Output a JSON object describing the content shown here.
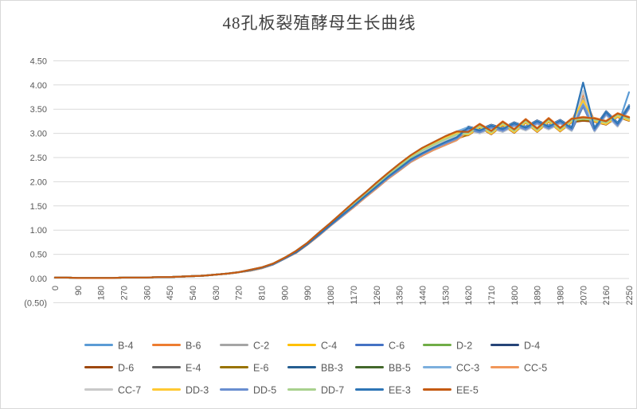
{
  "colors": {
    "grid": "#D9D9D9",
    "axis_label": "#595959",
    "negative_label": "#FF0000",
    "title_color": "#404040"
  },
  "chart_data": {
    "type": "line",
    "title": "48孔板裂殖酵母生长曲线",
    "xlabel": "",
    "ylabel": "",
    "grid": true,
    "legend_position": "bottom",
    "ylim": [
      -0.5,
      4.5
    ],
    "y_tick_step": 0.5,
    "y_tick_labels": [
      "4.50",
      "4.00",
      "3.50",
      "3.00",
      "2.50",
      "2.00",
      "1.50",
      "1.00",
      "0.50",
      "0.00",
      "(0.50)"
    ],
    "x_start": 0,
    "x_step": 45,
    "x_end": 2250,
    "x_tick_step": 90,
    "x_tick_labels": [
      "0",
      "90",
      "180",
      "270",
      "360",
      "450",
      "540",
      "630",
      "720",
      "810",
      "900",
      "990",
      "1080",
      "1170",
      "1260",
      "1350",
      "1440",
      "1530",
      "1620",
      "1710",
      "1800",
      "1890",
      "1980",
      "2070",
      "2160",
      "2250"
    ],
    "legend_rows": [
      [
        "B-4",
        "B-6",
        "C-2",
        "C-4",
        "C-6",
        "D-2",
        "D-4"
      ],
      [
        "D-6",
        "E-4",
        "E-6",
        "BB-3",
        "BB-5",
        "CC-3",
        "CC-5"
      ],
      [
        "CC-7",
        "DD-3",
        "DD-5",
        "DD-7",
        "EE-3",
        "EE-5"
      ]
    ],
    "series": [
      {
        "name": "B-4",
        "color": "#5B9BD5",
        "values": [
          0.02,
          0.02,
          0.01,
          0.01,
          0.01,
          0.01,
          0.02,
          0.02,
          0.02,
          0.03,
          0.03,
          0.04,
          0.05,
          0.06,
          0.08,
          0.1,
          0.13,
          0.17,
          0.22,
          0.3,
          0.42,
          0.55,
          0.72,
          0.92,
          1.12,
          1.32,
          1.52,
          1.72,
          1.92,
          2.12,
          2.3,
          2.48,
          2.62,
          2.74,
          2.85,
          2.95,
          3.06,
          3.0,
          3.1,
          3.03,
          3.15,
          3.06,
          3.19,
          3.08,
          3.2,
          3.05,
          3.56,
          3.04,
          3.38,
          3.14,
          3.85
        ]
      },
      {
        "name": "B-6",
        "color": "#ED7D31",
        "values": [
          0.02,
          0.02,
          0.01,
          0.01,
          0.01,
          0.01,
          0.02,
          0.02,
          0.02,
          0.03,
          0.03,
          0.04,
          0.05,
          0.06,
          0.08,
          0.1,
          0.13,
          0.17,
          0.22,
          0.29,
          0.41,
          0.54,
          0.71,
          0.9,
          1.1,
          1.29,
          1.49,
          1.69,
          1.88,
          2.08,
          2.25,
          2.43,
          2.57,
          2.69,
          2.79,
          2.89,
          2.97,
          3.13,
          2.99,
          3.18,
          3.02,
          3.23,
          3.04,
          3.25,
          3.05,
          3.24,
          3.8,
          3.25,
          3.19,
          3.35,
          3.27
        ]
      },
      {
        "name": "C-2",
        "color": "#A5A5A5",
        "values": [
          0.02,
          0.02,
          0.01,
          0.01,
          0.01,
          0.01,
          0.02,
          0.02,
          0.02,
          0.03,
          0.03,
          0.04,
          0.05,
          0.06,
          0.08,
          0.1,
          0.13,
          0.17,
          0.22,
          0.31,
          0.43,
          0.56,
          0.73,
          0.94,
          1.14,
          1.35,
          1.55,
          1.75,
          1.96,
          2.16,
          2.35,
          2.53,
          2.67,
          2.79,
          2.91,
          3.01,
          3.08,
          3.02,
          3.12,
          3.05,
          3.17,
          3.08,
          3.21,
          3.1,
          3.22,
          3.07,
          3.72,
          3.06,
          3.4,
          3.16,
          3.52
        ]
      },
      {
        "name": "C-4",
        "color": "#FFC000",
        "values": [
          0.02,
          0.02,
          0.01,
          0.01,
          0.01,
          0.01,
          0.02,
          0.02,
          0.02,
          0.03,
          0.03,
          0.04,
          0.05,
          0.06,
          0.08,
          0.1,
          0.13,
          0.17,
          0.22,
          0.3,
          0.42,
          0.54,
          0.71,
          0.91,
          1.11,
          1.31,
          1.5,
          1.7,
          1.9,
          2.1,
          2.28,
          2.46,
          2.59,
          2.71,
          2.82,
          2.92,
          3.0,
          3.16,
          3.02,
          3.21,
          3.05,
          3.26,
          3.07,
          3.28,
          3.08,
          3.27,
          3.3,
          3.28,
          3.22,
          3.38,
          3.3
        ]
      },
      {
        "name": "C-6",
        "color": "#4472C4",
        "values": [
          0.02,
          0.02,
          0.01,
          0.01,
          0.01,
          0.01,
          0.02,
          0.02,
          0.02,
          0.03,
          0.03,
          0.04,
          0.05,
          0.06,
          0.08,
          0.1,
          0.13,
          0.17,
          0.22,
          0.3,
          0.42,
          0.56,
          0.73,
          0.93,
          1.13,
          1.33,
          1.54,
          1.74,
          1.94,
          2.14,
          2.32,
          2.5,
          2.65,
          2.77,
          2.88,
          2.98,
          3.12,
          3.06,
          3.16,
          3.09,
          3.21,
          3.12,
          3.25,
          3.14,
          3.26,
          3.11,
          3.62,
          3.1,
          3.44,
          3.2,
          3.56
        ]
      },
      {
        "name": "D-2",
        "color": "#70AD47",
        "values": [
          0.02,
          0.02,
          0.01,
          0.01,
          0.01,
          0.01,
          0.02,
          0.02,
          0.02,
          0.03,
          0.03,
          0.04,
          0.05,
          0.06,
          0.08,
          0.1,
          0.13,
          0.18,
          0.23,
          0.31,
          0.43,
          0.57,
          0.74,
          0.95,
          1.15,
          1.36,
          1.57,
          1.77,
          1.98,
          2.18,
          2.37,
          2.55,
          2.7,
          2.82,
          2.94,
          3.04,
          3.03,
          3.19,
          3.05,
          3.24,
          3.08,
          3.29,
          3.1,
          3.31,
          3.11,
          3.3,
          3.33,
          3.31,
          3.25,
          3.41,
          3.33
        ]
      },
      {
        "name": "D-4",
        "color": "#264478",
        "values": [
          0.02,
          0.02,
          0.01,
          0.01,
          0.01,
          0.01,
          0.02,
          0.02,
          0.02,
          0.03,
          0.03,
          0.04,
          0.05,
          0.06,
          0.08,
          0.1,
          0.13,
          0.16,
          0.21,
          0.29,
          0.41,
          0.53,
          0.7,
          0.89,
          1.09,
          1.28,
          1.47,
          1.67,
          1.86,
          2.06,
          2.23,
          2.41,
          2.54,
          2.66,
          2.76,
          2.86,
          3.14,
          3.08,
          3.18,
          3.11,
          3.23,
          3.14,
          3.27,
          3.16,
          3.28,
          3.13,
          3.64,
          3.12,
          3.46,
          3.22,
          3.58
        ]
      },
      {
        "name": "D-6",
        "color": "#9E480E",
        "values": [
          0.02,
          0.02,
          0.01,
          0.01,
          0.01,
          0.01,
          0.02,
          0.02,
          0.02,
          0.03,
          0.03,
          0.04,
          0.05,
          0.06,
          0.08,
          0.1,
          0.13,
          0.17,
          0.22,
          0.3,
          0.42,
          0.55,
          0.72,
          0.92,
          1.12,
          1.32,
          1.52,
          1.72,
          1.92,
          2.12,
          2.3,
          2.48,
          2.62,
          2.74,
          2.85,
          2.95,
          2.96,
          3.12,
          2.98,
          3.17,
          3.01,
          3.22,
          3.03,
          3.24,
          3.04,
          3.23,
          3.26,
          3.24,
          3.18,
          3.34,
          3.26
        ]
      },
      {
        "name": "E-4",
        "color": "#636363",
        "values": [
          0.02,
          0.02,
          0.01,
          0.01,
          0.01,
          0.01,
          0.02,
          0.02,
          0.02,
          0.03,
          0.03,
          0.04,
          0.05,
          0.06,
          0.08,
          0.1,
          0.13,
          0.17,
          0.22,
          0.31,
          0.43,
          0.56,
          0.73,
          0.94,
          1.14,
          1.35,
          1.55,
          1.75,
          1.96,
          2.16,
          2.35,
          2.53,
          2.67,
          2.79,
          2.91,
          3.01,
          3.07,
          3.01,
          3.11,
          3.04,
          3.16,
          3.07,
          3.2,
          3.09,
          3.21,
          3.06,
          3.57,
          3.05,
          3.39,
          3.15,
          3.51
        ]
      },
      {
        "name": "E-6",
        "color": "#997300",
        "values": [
          0.02,
          0.02,
          0.01,
          0.01,
          0.01,
          0.01,
          0.02,
          0.02,
          0.02,
          0.03,
          0.03,
          0.04,
          0.05,
          0.06,
          0.08,
          0.1,
          0.13,
          0.17,
          0.22,
          0.29,
          0.41,
          0.54,
          0.71,
          0.9,
          1.1,
          1.29,
          1.49,
          1.69,
          1.88,
          2.08,
          2.25,
          2.43,
          2.57,
          2.69,
          2.79,
          2.89,
          2.98,
          3.14,
          3.0,
          3.19,
          3.03,
          3.24,
          3.05,
          3.26,
          3.06,
          3.25,
          3.28,
          3.26,
          3.2,
          3.36,
          3.28
        ]
      },
      {
        "name": "BB-3",
        "color": "#255E91",
        "values": [
          0.02,
          0.02,
          0.01,
          0.01,
          0.01,
          0.01,
          0.02,
          0.02,
          0.02,
          0.03,
          0.03,
          0.04,
          0.05,
          0.06,
          0.08,
          0.1,
          0.13,
          0.17,
          0.22,
          0.3,
          0.42,
          0.56,
          0.73,
          0.93,
          1.13,
          1.33,
          1.54,
          1.74,
          1.94,
          2.14,
          2.32,
          2.5,
          2.65,
          2.77,
          2.88,
          2.98,
          3.1,
          3.04,
          3.14,
          3.07,
          3.19,
          3.1,
          3.23,
          3.12,
          3.24,
          3.09,
          3.6,
          3.08,
          3.42,
          3.18,
          3.54
        ]
      },
      {
        "name": "BB-5",
        "color": "#43682B",
        "values": [
          0.02,
          0.02,
          0.01,
          0.01,
          0.01,
          0.01,
          0.02,
          0.02,
          0.02,
          0.03,
          0.03,
          0.04,
          0.05,
          0.06,
          0.08,
          0.1,
          0.13,
          0.17,
          0.22,
          0.3,
          0.42,
          0.54,
          0.71,
          0.91,
          1.11,
          1.31,
          1.5,
          1.7,
          1.9,
          2.1,
          2.28,
          2.46,
          2.59,
          2.71,
          2.82,
          2.92,
          3.02,
          3.18,
          3.04,
          3.23,
          3.07,
          3.28,
          3.09,
          3.3,
          3.1,
          3.29,
          3.32,
          3.3,
          3.24,
          3.4,
          3.32
        ]
      },
      {
        "name": "CC-3",
        "color": "#7CAFDD",
        "values": [
          0.02,
          0.02,
          0.01,
          0.01,
          0.01,
          0.01,
          0.02,
          0.02,
          0.02,
          0.03,
          0.03,
          0.04,
          0.05,
          0.06,
          0.08,
          0.1,
          0.13,
          0.18,
          0.23,
          0.31,
          0.43,
          0.57,
          0.74,
          0.95,
          1.15,
          1.36,
          1.57,
          1.77,
          1.98,
          2.18,
          2.37,
          2.55,
          2.7,
          2.82,
          2.94,
          3.04,
          3.13,
          3.07,
          3.17,
          3.1,
          3.22,
          3.13,
          3.26,
          3.15,
          3.27,
          3.12,
          3.63,
          3.11,
          3.45,
          3.21,
          3.57
        ]
      },
      {
        "name": "CC-5",
        "color": "#F1975A",
        "values": [
          0.02,
          0.02,
          0.01,
          0.01,
          0.01,
          0.01,
          0.02,
          0.02,
          0.02,
          0.03,
          0.03,
          0.04,
          0.05,
          0.06,
          0.08,
          0.1,
          0.13,
          0.16,
          0.21,
          0.29,
          0.41,
          0.53,
          0.7,
          0.89,
          1.09,
          1.28,
          1.47,
          1.67,
          1.86,
          2.06,
          2.23,
          2.41,
          2.54,
          2.66,
          2.76,
          2.86,
          3.04,
          3.2,
          3.06,
          3.25,
          3.09,
          3.3,
          3.11,
          3.32,
          3.12,
          3.31,
          3.34,
          3.32,
          3.26,
          3.42,
          3.34
        ]
      },
      {
        "name": "CC-7",
        "color": "#C9C9C9",
        "values": [
          0.02,
          0.02,
          0.01,
          0.01,
          0.01,
          0.01,
          0.02,
          0.02,
          0.02,
          0.03,
          0.03,
          0.04,
          0.05,
          0.06,
          0.08,
          0.1,
          0.13,
          0.17,
          0.22,
          0.3,
          0.42,
          0.55,
          0.72,
          0.92,
          1.12,
          1.32,
          1.52,
          1.72,
          1.92,
          2.12,
          2.3,
          2.48,
          2.62,
          2.74,
          2.85,
          2.95,
          3.06,
          3.0,
          3.1,
          3.03,
          3.15,
          3.06,
          3.19,
          3.08,
          3.2,
          3.05,
          3.88,
          3.04,
          3.38,
          3.14,
          3.5
        ]
      },
      {
        "name": "DD-3",
        "color": "#FFC933",
        "values": [
          0.02,
          0.02,
          0.01,
          0.01,
          0.01,
          0.01,
          0.02,
          0.02,
          0.02,
          0.03,
          0.03,
          0.04,
          0.05,
          0.06,
          0.08,
          0.1,
          0.13,
          0.17,
          0.22,
          0.31,
          0.43,
          0.56,
          0.73,
          0.94,
          1.14,
          1.35,
          1.55,
          1.75,
          1.96,
          2.16,
          2.35,
          2.53,
          2.67,
          2.79,
          2.91,
          3.01,
          2.97,
          3.13,
          2.99,
          3.18,
          3.02,
          3.23,
          3.04,
          3.25,
          3.05,
          3.24,
          3.68,
          3.25,
          3.19,
          3.35,
          3.27
        ]
      },
      {
        "name": "DD-5",
        "color": "#698ED0",
        "values": [
          0.02,
          0.02,
          0.01,
          0.01,
          0.01,
          0.01,
          0.02,
          0.02,
          0.02,
          0.03,
          0.03,
          0.04,
          0.05,
          0.06,
          0.08,
          0.1,
          0.13,
          0.17,
          0.22,
          0.29,
          0.41,
          0.54,
          0.71,
          0.9,
          1.1,
          1.29,
          1.49,
          1.69,
          1.88,
          2.08,
          2.25,
          2.43,
          2.57,
          2.69,
          2.79,
          2.89,
          3.08,
          3.02,
          3.12,
          3.05,
          3.17,
          3.08,
          3.21,
          3.1,
          3.22,
          3.07,
          3.58,
          3.06,
          3.4,
          3.16,
          3.52
        ]
      },
      {
        "name": "DD-7",
        "color": "#A9D18E",
        "values": [
          0.02,
          0.02,
          0.01,
          0.01,
          0.01,
          0.01,
          0.02,
          0.02,
          0.02,
          0.03,
          0.03,
          0.04,
          0.05,
          0.06,
          0.08,
          0.1,
          0.13,
          0.17,
          0.22,
          0.3,
          0.42,
          0.56,
          0.73,
          0.93,
          1.13,
          1.33,
          1.54,
          1.74,
          1.94,
          2.14,
          2.32,
          2.5,
          2.65,
          2.77,
          2.88,
          2.98,
          3.0,
          3.16,
          3.02,
          3.21,
          3.05,
          3.26,
          3.07,
          3.28,
          3.08,
          3.27,
          3.3,
          3.28,
          3.22,
          3.38,
          3.3
        ]
      },
      {
        "name": "EE-3",
        "color": "#2E75B6",
        "values": [
          0.02,
          0.02,
          0.01,
          0.01,
          0.01,
          0.01,
          0.02,
          0.02,
          0.02,
          0.03,
          0.03,
          0.04,
          0.05,
          0.06,
          0.08,
          0.1,
          0.13,
          0.17,
          0.22,
          0.3,
          0.42,
          0.54,
          0.71,
          0.91,
          1.11,
          1.31,
          1.5,
          1.7,
          1.9,
          2.1,
          2.28,
          2.46,
          2.59,
          2.71,
          2.82,
          2.92,
          3.12,
          3.06,
          3.16,
          3.09,
          3.21,
          3.12,
          3.25,
          3.14,
          3.26,
          3.11,
          4.05,
          3.1,
          3.44,
          3.2,
          3.56
        ]
      },
      {
        "name": "EE-5",
        "color": "#C55A11",
        "values": [
          0.02,
          0.02,
          0.01,
          0.01,
          0.01,
          0.01,
          0.02,
          0.02,
          0.02,
          0.03,
          0.03,
          0.04,
          0.05,
          0.06,
          0.08,
          0.1,
          0.13,
          0.18,
          0.23,
          0.31,
          0.43,
          0.57,
          0.74,
          0.95,
          1.15,
          1.36,
          1.57,
          1.77,
          1.98,
          2.18,
          2.37,
          2.55,
          2.7,
          2.82,
          2.94,
          3.04,
          3.03,
          3.19,
          3.05,
          3.24,
          3.08,
          3.29,
          3.1,
          3.31,
          3.11,
          3.3,
          3.33,
          3.31,
          3.25,
          3.41,
          3.33
        ]
      }
    ]
  }
}
